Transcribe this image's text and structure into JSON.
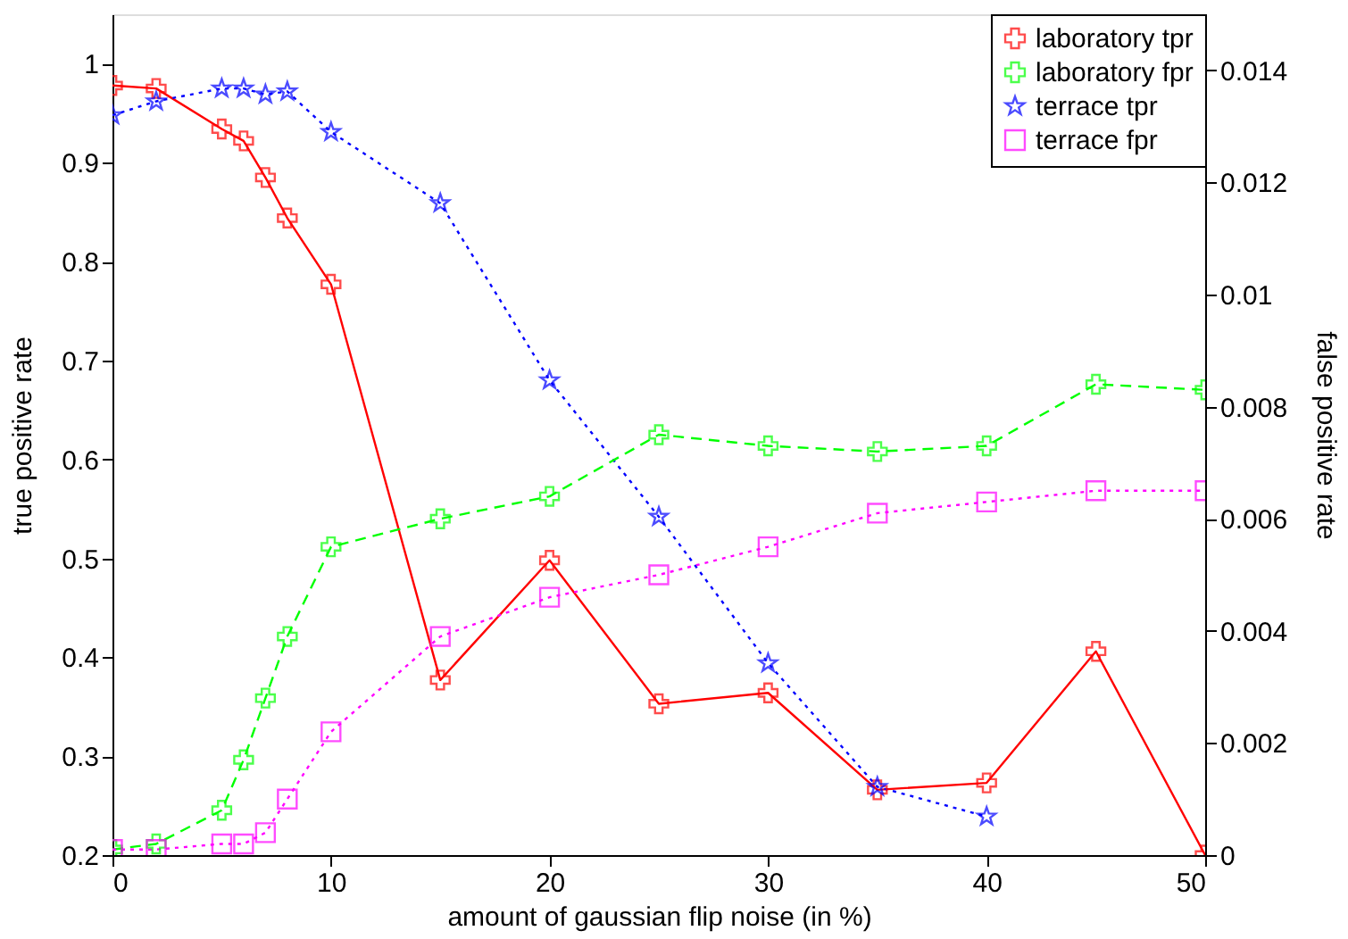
{
  "chart_data": {
    "type": "line",
    "xlabel": "amount of gaussian flip noise (in %)",
    "ylabel": "true positive rate",
    "y2label": "false positive rate",
    "xlim": [
      0,
      50
    ],
    "xticks": [
      0,
      10,
      20,
      30,
      40,
      50
    ],
    "ylim": [
      0.2,
      1.05
    ],
    "yticks": [
      0.2,
      0.3,
      0.4,
      0.5,
      0.6,
      0.7,
      0.8,
      0.9,
      1
    ],
    "y2lim": [
      0,
      0.015
    ],
    "y2ticks": [
      0,
      0.002,
      0.004,
      0.006,
      0.008,
      0.01,
      0.012,
      0.014
    ],
    "grid": false,
    "legend": "top right",
    "series": [
      {
        "name": "laboratory tpr",
        "color": "#ff0000",
        "marker": "cross",
        "line_style": "solid",
        "x": [
          0,
          2,
          5,
          6,
          7,
          8,
          10,
          15,
          20,
          25,
          30,
          35,
          40,
          45,
          50
        ],
        "values": [
          0.978,
          0.975,
          0.934,
          0.922,
          0.885,
          0.844,
          0.777,
          0.377,
          0.498,
          0.353,
          0.364,
          0.266,
          0.273,
          0.406,
          0.2
        ]
      },
      {
        "name": "laboratory fpr",
        "color": "#00ff00",
        "marker": "cross",
        "line_style": "dashed",
        "axis": "y2",
        "x": [
          0,
          2,
          5,
          6,
          7,
          8,
          10,
          15,
          20,
          25,
          30,
          35,
          40,
          45,
          50
        ],
        "values": [
          0.0001,
          0.0002,
          0.0008,
          0.0017,
          0.0028,
          0.0039,
          0.0055,
          0.006,
          0.0064,
          0.0075,
          0.0073,
          0.0072,
          0.0073,
          0.0084,
          0.0083
        ]
      },
      {
        "name": "terrace tpr",
        "color": "#0000ff",
        "marker": "star",
        "line_style": "dotted",
        "x": [
          0,
          2,
          5,
          6,
          7,
          8,
          10,
          15,
          20,
          25,
          30,
          35,
          40
        ],
        "values": [
          0.948,
          0.962,
          0.975,
          0.975,
          0.969,
          0.972,
          0.931,
          0.859,
          0.68,
          0.542,
          0.394,
          0.269,
          0.239
        ]
      },
      {
        "name": "terrace fpr",
        "color": "#ff00ff",
        "marker": "square",
        "line_style": "dotted",
        "axis": "y2",
        "x": [
          0,
          2,
          5,
          6,
          7,
          8,
          10,
          15,
          20,
          25,
          30,
          35,
          40,
          45,
          50
        ],
        "values": [
          0.0001,
          0.0001,
          0.0002,
          0.0002,
          0.0004,
          0.001,
          0.0022,
          0.0039,
          0.0046,
          0.005,
          0.0055,
          0.0061,
          0.0063,
          0.0065,
          0.0065
        ]
      }
    ]
  }
}
